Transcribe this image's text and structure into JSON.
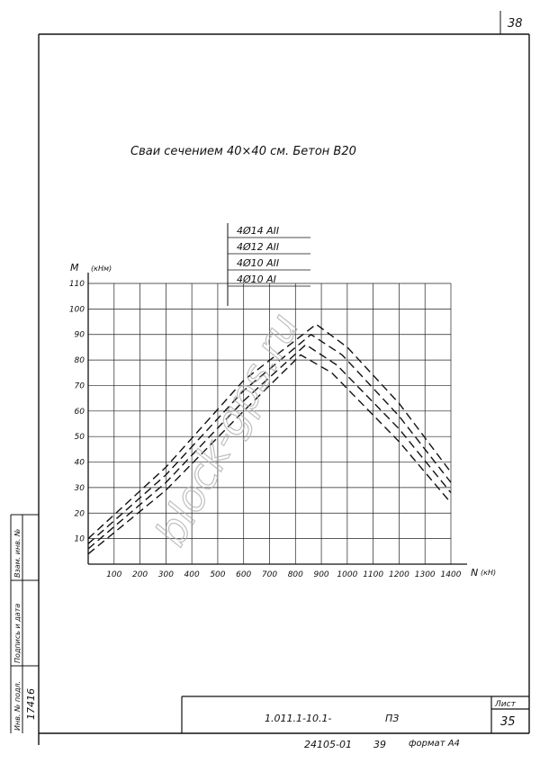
{
  "sheet": {
    "corner_number": "38",
    "title": "Сваи сечением 40×40 см. Бетон В20",
    "sheet_label": "Лист",
    "sheet_number": "35",
    "doc_code": "1.011.1-10.1-",
    "doc_part": "ПЗ",
    "bottom_code": "24105-01",
    "bottom_num": "39",
    "format": "формат А4",
    "side_cols": [
      "Инв. № подл.",
      "Подпись и дата",
      "Взам. инв. №"
    ],
    "inv_no": "17416",
    "watermark": "block-gps.ru"
  },
  "chart_data": {
    "type": "line",
    "ylabel": "М",
    "yunit": "(кНм)",
    "xlabel": "N",
    "xunit": "(кН)",
    "xlim": [
      0,
      1400
    ],
    "ylim": [
      0,
      110
    ],
    "xticks": [
      100,
      200,
      300,
      400,
      500,
      600,
      700,
      800,
      900,
      1000,
      1100,
      1200,
      1300,
      1400
    ],
    "yticks": [
      10,
      20,
      30,
      40,
      50,
      60,
      70,
      80,
      90,
      100,
      110
    ],
    "grid": true,
    "legend_position": "top-center",
    "series": [
      {
        "name": "4Ø14 АII",
        "points": [
          [
            0,
            10
          ],
          [
            300,
            38
          ],
          [
            600,
            72
          ],
          [
            880,
            94
          ],
          [
            1000,
            85
          ],
          [
            1200,
            63
          ],
          [
            1400,
            36
          ]
        ]
      },
      {
        "name": "4Ø12 АII",
        "points": [
          [
            0,
            8
          ],
          [
            300,
            35
          ],
          [
            600,
            68
          ],
          [
            860,
            90
          ],
          [
            980,
            82
          ],
          [
            1200,
            58
          ],
          [
            1400,
            32
          ]
        ]
      },
      {
        "name": "4Ø10 АII",
        "points": [
          [
            0,
            6
          ],
          [
            300,
            32
          ],
          [
            600,
            64
          ],
          [
            840,
            86
          ],
          [
            960,
            78
          ],
          [
            1200,
            53
          ],
          [
            1400,
            28
          ]
        ]
      },
      {
        "name": "4Ø10 АI",
        "points": [
          [
            0,
            4
          ],
          [
            300,
            29
          ],
          [
            600,
            60
          ],
          [
            820,
            82
          ],
          [
            940,
            75
          ],
          [
            1200,
            48
          ],
          [
            1400,
            24
          ]
        ]
      }
    ]
  }
}
